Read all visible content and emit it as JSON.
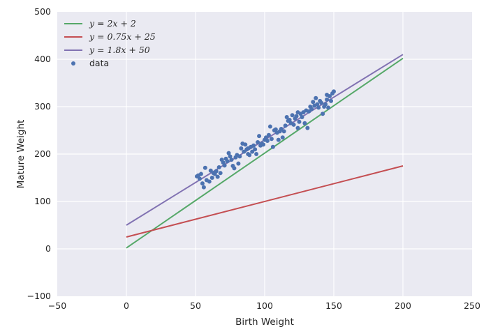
{
  "chart_data": {
    "type": "scatter",
    "xlabel": "Birth Weight",
    "ylabel": "Mature Weight",
    "xlim": [
      -50,
      250
    ],
    "ylim": [
      -100,
      500
    ],
    "xticks": [
      "−50",
      "0",
      "50",
      "100",
      "150",
      "200",
      "250"
    ],
    "yticks": [
      "−100",
      "0",
      "100",
      "200",
      "300",
      "400",
      "500"
    ],
    "grid": true,
    "legend": "top-left",
    "colors": {
      "background": "#eaeaf2",
      "grid": "#ffffff",
      "line1": "#55a868",
      "line2": "#c44e52",
      "line3": "#8172b2",
      "points": "#4c72b0"
    },
    "lines": [
      {
        "name": "y = 2x + 2",
        "x": [
          0,
          200
        ],
        "y": [
          2,
          402
        ]
      },
      {
        "name": "y = 0.75x + 25",
        "x": [
          0,
          200
        ],
        "y": [
          25,
          175
        ]
      },
      {
        "name": "y = 1.8x + 50",
        "x": [
          0,
          200
        ],
        "y": [
          50,
          410
        ]
      }
    ],
    "scatter": {
      "name": "data",
      "points": [
        [
          51,
          153
        ],
        [
          52,
          155
        ],
        [
          53,
          148
        ],
        [
          54,
          158
        ],
        [
          55,
          138
        ],
        [
          56,
          130
        ],
        [
          57,
          171
        ],
        [
          58,
          145
        ],
        [
          60,
          142
        ],
        [
          61,
          165
        ],
        [
          62,
          150
        ],
        [
          63,
          160
        ],
        [
          64,
          158
        ],
        [
          65,
          164
        ],
        [
          66,
          152
        ],
        [
          67,
          172
        ],
        [
          68,
          160
        ],
        [
          69,
          188
        ],
        [
          70,
          182
        ],
        [
          71,
          176
        ],
        [
          72,
          190
        ],
        [
          73,
          185
        ],
        [
          74,
          202
        ],
        [
          75,
          195
        ],
        [
          76,
          188
        ],
        [
          77,
          175
        ],
        [
          78,
          170
        ],
        [
          79,
          193
        ],
        [
          80,
          198
        ],
        [
          81,
          180
        ],
        [
          82,
          195
        ],
        [
          83,
          212
        ],
        [
          84,
          222
        ],
        [
          85,
          205
        ],
        [
          86,
          220
        ],
        [
          87,
          210
        ],
        [
          88,
          212
        ],
        [
          89,
          198
        ],
        [
          90,
          215
        ],
        [
          91,
          205
        ],
        [
          92,
          218
        ],
        [
          93,
          210
        ],
        [
          94,
          200
        ],
        [
          95,
          225
        ],
        [
          96,
          238
        ],
        [
          97,
          218
        ],
        [
          98,
          222
        ],
        [
          99,
          220
        ],
        [
          100,
          230
        ],
        [
          101,
          235
        ],
        [
          102,
          228
        ],
        [
          103,
          240
        ],
        [
          104,
          258
        ],
        [
          105,
          232
        ],
        [
          106,
          215
        ],
        [
          107,
          250
        ],
        [
          108,
          252
        ],
        [
          109,
          245
        ],
        [
          110,
          230
        ],
        [
          111,
          248
        ],
        [
          112,
          253
        ],
        [
          113,
          235
        ],
        [
          114,
          248
        ],
        [
          115,
          260
        ],
        [
          116,
          278
        ],
        [
          117,
          270
        ],
        [
          118,
          272
        ],
        [
          119,
          265
        ],
        [
          120,
          282
        ],
        [
          121,
          262
        ],
        [
          122,
          275
        ],
        [
          123,
          280
        ],
        [
          124,
          255
        ],
        [
          125,
          268
        ],
        [
          126,
          285
        ],
        [
          127,
          278
        ],
        [
          128,
          288
        ],
        [
          129,
          265
        ],
        [
          130,
          292
        ],
        [
          131,
          255
        ],
        [
          132,
          290
        ],
        [
          133,
          300
        ],
        [
          134,
          295
        ],
        [
          135,
          310
        ],
        [
          136,
          302
        ],
        [
          137,
          318
        ],
        [
          138,
          305
        ],
        [
          139,
          298
        ],
        [
          140,
          312
        ],
        [
          141,
          308
        ],
        [
          142,
          285
        ],
        [
          143,
          300
        ],
        [
          144,
          305
        ],
        [
          145,
          315
        ],
        [
          146,
          298
        ],
        [
          147,
          322
        ],
        [
          148,
          312
        ],
        [
          149,
          328
        ],
        [
          150,
          332
        ],
        [
          145,
          325
        ],
        [
          124,
          288
        ],
        [
          88,
          200
        ]
      ]
    }
  }
}
